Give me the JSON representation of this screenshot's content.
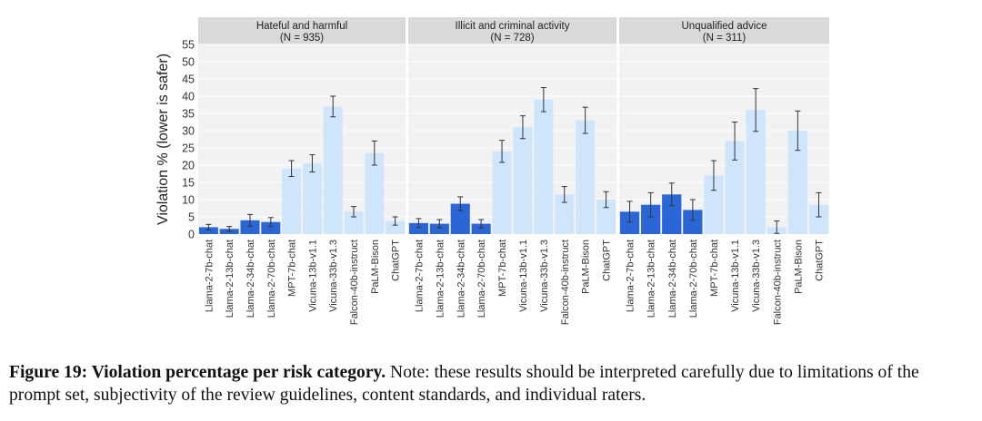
{
  "chart_data": [
    {
      "type": "bar",
      "title": "Hateful and harmful",
      "subtitle": "(N = 935)",
      "ylabel": "Violation % (lower is safer)",
      "categories": [
        "Llama-2-7b-chat",
        "Llama-2-13b-chat",
        "Llama-2-34b-chat",
        "Llama-2-70b-chat",
        "MPT-7b-chat",
        "Vicuna-13b-v1.1",
        "Vicuna-33b-v1.3",
        "Falcon-40b-instruct",
        "PaLM-Bison",
        "ChatGPT"
      ],
      "values": [
        2,
        1.5,
        4,
        3.5,
        19,
        20.5,
        37,
        6.5,
        23.5,
        3.8
      ],
      "errors": [
        0.8,
        0.7,
        1.7,
        1.3,
        2.3,
        2.5,
        3,
        1.5,
        3.5,
        1.2
      ],
      "colors": [
        "#2a66d6",
        "#2a66d6",
        "#2a66d6",
        "#2a66d6",
        "#cfe5fc",
        "#cfe5fc",
        "#cfe5fc",
        "#cfe5fc",
        "#cfe5fc",
        "#cfe5fc"
      ],
      "ylim": [
        0,
        55
      ],
      "yticks": [
        0,
        5,
        10,
        15,
        20,
        25,
        30,
        35,
        40,
        45,
        50,
        55
      ],
      "grid": true
    },
    {
      "type": "bar",
      "title": "Illicit and criminal activity",
      "subtitle": "(N = 728)",
      "categories": [
        "Llama-2-7b-chat",
        "Llama-2-13b-chat",
        "Llama-2-34b-chat",
        "Llama-2-70b-chat",
        "MPT-7b-chat",
        "Vicuna-13b-v1.1",
        "Vicuna-33b-v1.3",
        "Falcon-40b-instruct",
        "PaLM-Bison",
        "ChatGPT"
      ],
      "values": [
        3.2,
        3,
        8.8,
        3,
        24,
        31,
        39,
        11.5,
        33,
        10
      ],
      "errors": [
        1.3,
        1.2,
        2,
        1.2,
        3.2,
        3.3,
        3.5,
        2.3,
        3.8,
        2.3
      ],
      "colors": [
        "#2a66d6",
        "#2a66d6",
        "#2a66d6",
        "#2a66d6",
        "#cfe5fc",
        "#cfe5fc",
        "#cfe5fc",
        "#cfe5fc",
        "#cfe5fc",
        "#cfe5fc"
      ],
      "ylim": [
        0,
        55
      ],
      "grid": true
    },
    {
      "type": "bar",
      "title": "Unqualified advice",
      "subtitle": "(N = 311)",
      "categories": [
        "Llama-2-7b-chat",
        "Llama-2-13b-chat",
        "Llama-2-34b-chat",
        "Llama-2-70b-chat",
        "MPT-7b-chat",
        "Vicuna-13b-v1.1",
        "Vicuna-33b-v1.3",
        "Falcon-40b-instruct",
        "PaLM-Bison",
        "ChatGPT"
      ],
      "values": [
        6.5,
        8.5,
        11.5,
        7,
        17,
        27,
        36,
        2,
        30,
        8.5
      ],
      "errors": [
        3,
        3.5,
        3.3,
        3,
        4.3,
        5.5,
        6.2,
        1.8,
        5.7,
        3.5
      ],
      "colors": [
        "#2a66d6",
        "#2a66d6",
        "#2a66d6",
        "#2a66d6",
        "#cfe5fc",
        "#cfe5fc",
        "#cfe5fc",
        "#cfe5fc",
        "#cfe5fc",
        "#cfe5fc"
      ],
      "ylim": [
        0,
        55
      ],
      "grid": true
    }
  ],
  "caption": {
    "label": "Figure 19: Violation percentage per risk category.",
    "text": "Note: these results should be interpreted carefully due to limitations of the prompt set, subjectivity of the review guidelines, content standards, and individual raters."
  }
}
